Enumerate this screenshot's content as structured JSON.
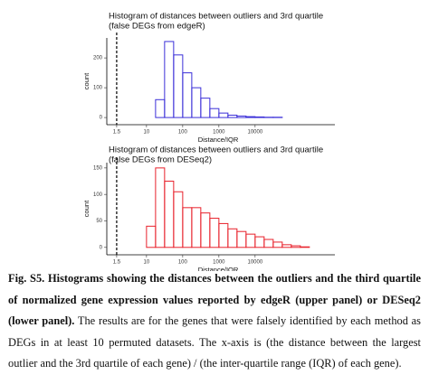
{
  "chart_data": [
    {
      "type": "histogram",
      "title_lines": [
        "Histogram of distances between outliers and 3rd quartile",
        "(false DEGs from edgeR)"
      ],
      "xlabel": "Distance/IQR",
      "ylabel": "count",
      "color": "#3b2fd8",
      "log_x": true,
      "vline": 1.5,
      "bins": [
        3.16,
        5.62,
        10,
        17.8,
        31.6,
        56.2,
        100,
        178,
        316,
        562,
        1000,
        1778,
        3162,
        5623,
        10000,
        17783,
        31623,
        56234,
        100000,
        177828,
        316228,
        562341,
        1000000
      ],
      "counts": [
        0,
        0,
        0,
        60,
        255,
        210,
        150,
        100,
        65,
        30,
        15,
        8,
        5,
        3,
        2,
        1,
        1,
        0,
        0,
        0,
        0,
        0
      ],
      "xlim": [
        0.8,
        1600000
      ],
      "xticks": [
        1.5,
        10,
        100,
        1000,
        10000
      ],
      "ylim": [
        -24,
        267
      ],
      "yticks": [
        0,
        100,
        200
      ]
    },
    {
      "type": "histogram",
      "title_lines": [
        "Histogram of distances between outliers and 3rd quartile",
        "(false DEGs from DESeq2)"
      ],
      "xlabel": "Distance/IQR",
      "ylabel": "count",
      "color": "#e8212b",
      "log_x": true,
      "vline": 1.5,
      "bins": [
        3.16,
        5.62,
        10,
        17.8,
        31.6,
        56.2,
        100,
        178,
        316,
        562,
        1000,
        1778,
        3162,
        5623,
        10000,
        17783,
        31623,
        56234,
        100000,
        177828,
        316228,
        562341,
        1000000
      ],
      "counts": [
        0,
        0,
        40,
        150,
        125,
        105,
        75,
        75,
        65,
        55,
        45,
        35,
        30,
        25,
        20,
        15,
        10,
        5,
        3,
        1,
        0,
        0
      ],
      "xlim": [
        0.8,
        1600000
      ],
      "xticks": [
        1.5,
        10,
        100,
        1000,
        10000
      ],
      "ylim": [
        -14,
        160
      ],
      "yticks": [
        0,
        50,
        100,
        150
      ]
    }
  ],
  "caption": {
    "bold": "Fig. S5. Histograms showing the distances between the outliers and the third quartile of normalized gene expression values reported by edgeR (upper panel) or DESeq2 (lower panel).",
    "text": "The results are for the genes that were falsely identified by each method as DEGs in at least 10 permuted datasets. The x-axis is (the distance between the largest outlier and the 3rd quartile of each gene) / (the inter-quartile range (IQR) of each gene)."
  }
}
